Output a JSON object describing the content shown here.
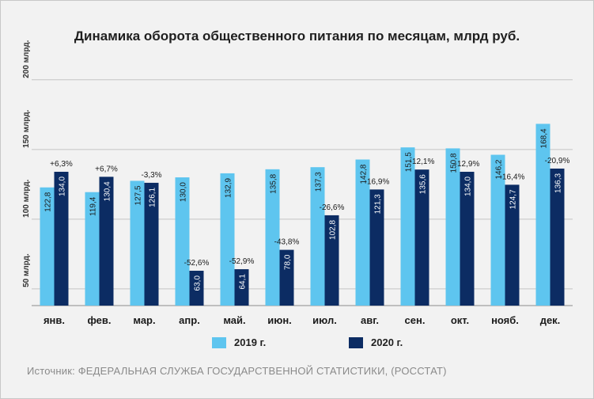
{
  "chart_data": {
    "type": "bar",
    "title": "Динамика оборота общественного питания по месяцам, млрд руб.",
    "categories": [
      "янв.",
      "фев.",
      "мар.",
      "апр.",
      "май.",
      "июн.",
      "июл.",
      "авг.",
      "сен.",
      "окт.",
      "нояб.",
      "дек."
    ],
    "series": [
      {
        "name": "2019 г.",
        "color": "#5ec5ef",
        "values": [
          122.8,
          119.4,
          127.5,
          130.0,
          132.9,
          135.8,
          137.3,
          142.8,
          151.5,
          150.8,
          146.2,
          168.4
        ],
        "labels": [
          "122,8",
          "119,4",
          "127,5",
          "130,0",
          "132,9",
          "135,8",
          "137,3",
          "142,8",
          "151,5",
          "150,8",
          "146,2",
          "168,4"
        ]
      },
      {
        "name": "2020 г.",
        "color": "#0c2c63",
        "values": [
          134.0,
          130.4,
          126.1,
          63.0,
          64.1,
          78.0,
          102.8,
          121.3,
          135.6,
          134.0,
          124.7,
          136.3
        ],
        "labels": [
          "134,0",
          "130,4",
          "126,1",
          "63,0",
          "64,1",
          "78,0",
          "102,8",
          "121,3",
          "135,6",
          "134,0",
          "124,7",
          "136,3"
        ]
      }
    ],
    "changes": [
      "+6,3%",
      "+6,7%",
      "-3,3%",
      "-52,6%",
      "-52,9%",
      "-43,8%",
      "-26,6%",
      "-16,9%",
      "-12,1%",
      "-12,9%",
      "-16,4%",
      "-20,9%"
    ],
    "yticks": [
      50,
      100,
      150,
      200
    ],
    "ytick_labels": [
      "50 млрд.",
      "100 млрд.",
      "150 млрд.",
      "200 млрд."
    ],
    "ylim": [
      38,
      205
    ],
    "xlabel": "",
    "ylabel": "",
    "grid": true,
    "legend": "bottom"
  },
  "source": "Источник: ФЕДЕРАЛЬНАЯ СЛУЖБА ГОСУДАРСТВЕННОЙ СТАТИСТИКИ, (РОССТАТ)"
}
